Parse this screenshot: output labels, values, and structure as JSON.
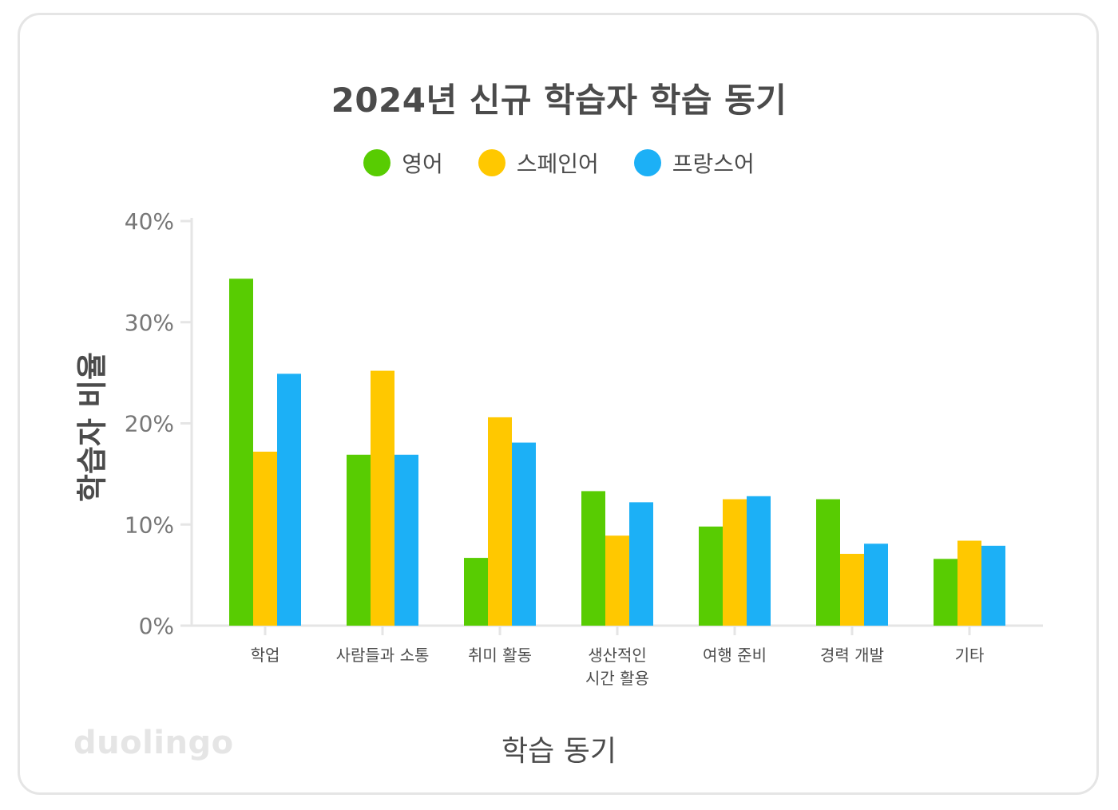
{
  "chart_data": {
    "type": "bar",
    "title": "2024년 신규 학습자 학습 동기",
    "xlabel": "학습 동기",
    "ylabel": "학습자 비율",
    "categories": [
      "학업",
      "사람들과 소통",
      "취미 활동",
      "생산적인\n시간 활용",
      "여행 준비",
      "경력 개발",
      "기타"
    ],
    "series": [
      {
        "name": "영어",
        "color": "#58cc02",
        "values": [
          34.3,
          16.9,
          6.7,
          13.3,
          9.8,
          12.5,
          6.6
        ]
      },
      {
        "name": "스페인어",
        "color": "#ffc800",
        "values": [
          17.2,
          25.2,
          20.6,
          8.9,
          12.5,
          7.1,
          8.4
        ]
      },
      {
        "name": "프랑스어",
        "color": "#1cb0f6",
        "values": [
          24.9,
          16.9,
          18.1,
          12.2,
          12.8,
          8.1,
          7.9
        ]
      }
    ],
    "yticks": [
      "0%",
      "10%",
      "20%",
      "30%",
      "40%"
    ],
    "ylim": [
      0,
      40
    ],
    "legend_position": "top-center",
    "grid": false
  },
  "brand": "duolingo"
}
